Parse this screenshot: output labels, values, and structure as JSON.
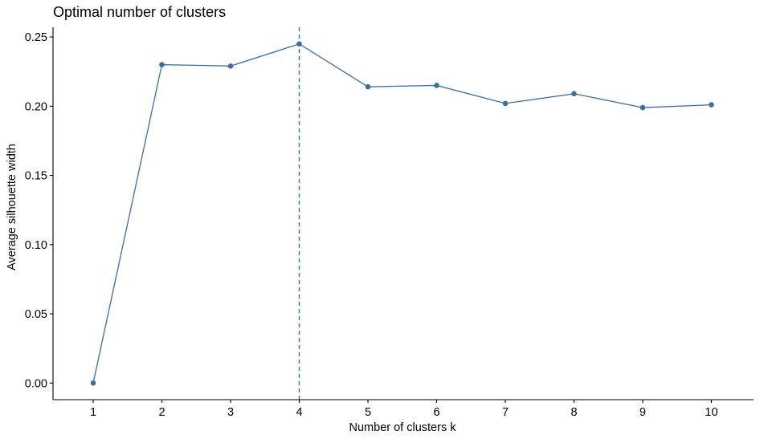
{
  "chart_data": {
    "type": "line",
    "title": "Optimal number of clusters",
    "xlabel": "Number of clusters k",
    "ylabel": "Average silhouette width",
    "categories": [
      "1",
      "2",
      "3",
      "4",
      "5",
      "6",
      "7",
      "8",
      "9",
      "10"
    ],
    "series": [
      {
        "values": [
          0.0,
          0.23,
          0.229,
          0.245,
          0.214,
          0.215,
          0.202,
          0.209,
          0.199,
          0.201
        ]
      }
    ],
    "y_ticks": [
      "0.00",
      "0.05",
      "0.10",
      "0.15",
      "0.20",
      "0.25"
    ],
    "ylim": [
      -0.012,
      0.257
    ],
    "optimal_k": 4,
    "grid": false,
    "colors": {
      "series": "#3a6fa6",
      "axis": "#000000"
    }
  }
}
